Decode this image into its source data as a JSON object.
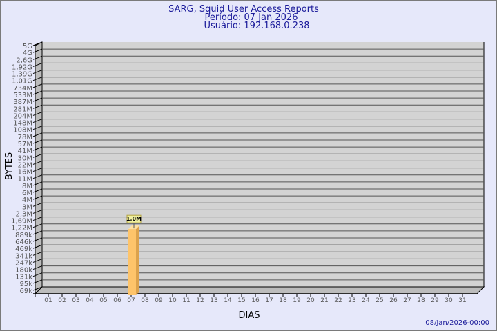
{
  "chart_data": {
    "type": "bar",
    "title": "SARG, Squid User Access Reports",
    "subtitle_period": "Período: 07 Jan 2026",
    "subtitle_user": "Usuário: 192.168.0.238",
    "xlabel": "DIAS",
    "ylabel": "BYTES",
    "y_scale": "log",
    "y_tick_labels": [
      "5G",
      "4G",
      "2,6G",
      "1,92G",
      "1,39G",
      "1,01G",
      "734M",
      "533M",
      "387M",
      "281M",
      "204M",
      "148M",
      "108M",
      "78M",
      "57M",
      "41M",
      "30M",
      "22M",
      "16M",
      "11M",
      "8M",
      "6M",
      "4M",
      "3M",
      "2,3M",
      "1,69M",
      "1,22M",
      "889k",
      "646k",
      "469k",
      "341k",
      "247k",
      "180k",
      "131k",
      "95k",
      "69k"
    ],
    "categories": [
      "01",
      "02",
      "03",
      "04",
      "05",
      "06",
      "07",
      "08",
      "09",
      "10",
      "11",
      "12",
      "13",
      "14",
      "15",
      "16",
      "17",
      "18",
      "19",
      "20",
      "21",
      "22",
      "23",
      "24",
      "25",
      "26",
      "27",
      "28",
      "29",
      "30",
      "31"
    ],
    "bars": [
      {
        "category": "07",
        "value": 1000000,
        "label": "1,0M"
      }
    ],
    "grid": true,
    "colors": {
      "bar_front": "#fec46a",
      "bar_side": "#dca24c",
      "bar_top": "#ffe0a0",
      "plot_bg": "#d3d3d3",
      "grid": "#555555",
      "label_box": "#f0f0a0"
    }
  },
  "footer": {
    "timestamp": "08/Jan/2026-00:00"
  }
}
